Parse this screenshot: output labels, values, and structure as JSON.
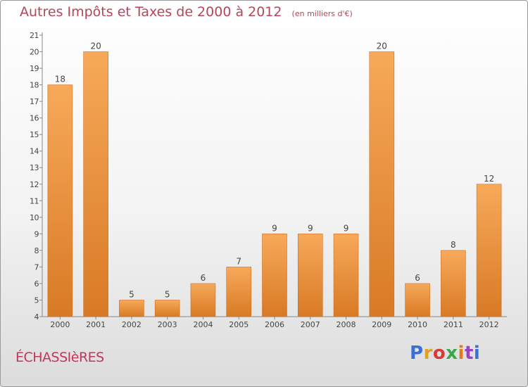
{
  "header": {
    "title": "Autres Impôts et Taxes de 2000 à 2012",
    "unit": "(en milliers d'€)"
  },
  "footer": {
    "commune": "ÉCHASSIèRES",
    "logo_text": "Proxiti"
  },
  "colors": {
    "title": "#b4465a",
    "bar_light": "#f7a95a",
    "bar_dark": "#d87a25",
    "logo": [
      "#3b6fd8",
      "#e0a020",
      "#d83a3a",
      "#3aa84a",
      "#e07a20",
      "#9a40c0",
      "#3b6fd8"
    ]
  },
  "chart_data": {
    "type": "bar",
    "categories": [
      "2000",
      "2001",
      "2002",
      "2003",
      "2004",
      "2005",
      "2006",
      "2007",
      "2008",
      "2009",
      "2010",
      "2011",
      "2012"
    ],
    "values": [
      18,
      20,
      5,
      5,
      6,
      7,
      9,
      9,
      9,
      20,
      6,
      8,
      12
    ],
    "ylim": [
      4,
      21
    ],
    "yticks": [
      4,
      5,
      6,
      7,
      8,
      9,
      10,
      11,
      12,
      13,
      14,
      15,
      16,
      17,
      18,
      19,
      20,
      21
    ],
    "grid": false,
    "data_labels": true
  }
}
